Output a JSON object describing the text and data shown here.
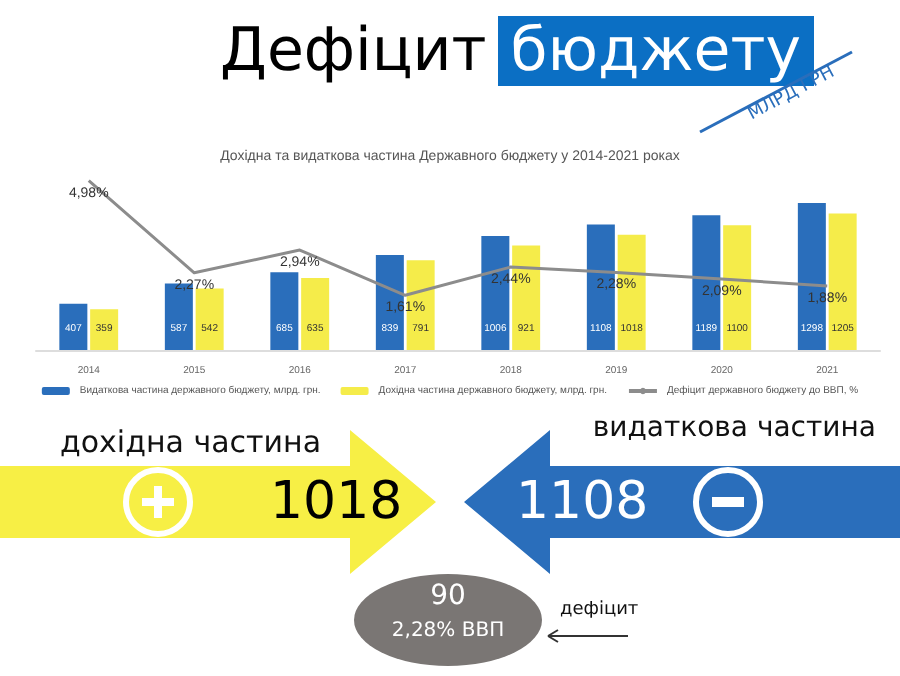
{
  "chart_data": {
    "type": "bar",
    "title": "Дефіцит бюджету",
    "subtitle": "Дохідна та видаткова частина Державного бюджету у 2014-2021 роках",
    "categories": [
      "2014",
      "2015",
      "2016",
      "2017",
      "2018",
      "2019",
      "2020",
      "2021"
    ],
    "series": [
      {
        "name": "Видаткова частина державного бюджету, млрд. грн.",
        "color": "#2a6ebb",
        "values": [
          407,
          587,
          685,
          839,
          1006,
          1108,
          1189,
          1298
        ]
      },
      {
        "name": "Дохідна частина державного бюджету, млрд. грн.",
        "color": "#f5ec4a",
        "values": [
          359,
          542,
          635,
          791,
          921,
          1018,
          1100,
          1205
        ]
      },
      {
        "name": "Дефіцит державного бюджету до ВВП, %",
        "type": "line",
        "axis": "y2",
        "color": "#8c8c8c",
        "values": [
          4.98,
          2.27,
          2.94,
          1.61,
          2.44,
          2.28,
          2.09,
          1.88
        ],
        "value_labels": [
          "4,98%",
          "2,27%",
          "2,94%",
          "1,61%",
          "2,44%",
          "2,28%",
          "2,09%",
          "1,88%"
        ]
      }
    ],
    "data_labels": true,
    "tick_labels": "x",
    "grid": false,
    "legend": "bottom",
    "marker": "none",
    "line_style": "solid",
    "annotations": [
      "МЛРД ГРН",
      "дохідна частина",
      "1018",
      "видаткова частина",
      "1108",
      "90",
      "2,28% ВВП",
      "дефіцит"
    ]
  }
}
